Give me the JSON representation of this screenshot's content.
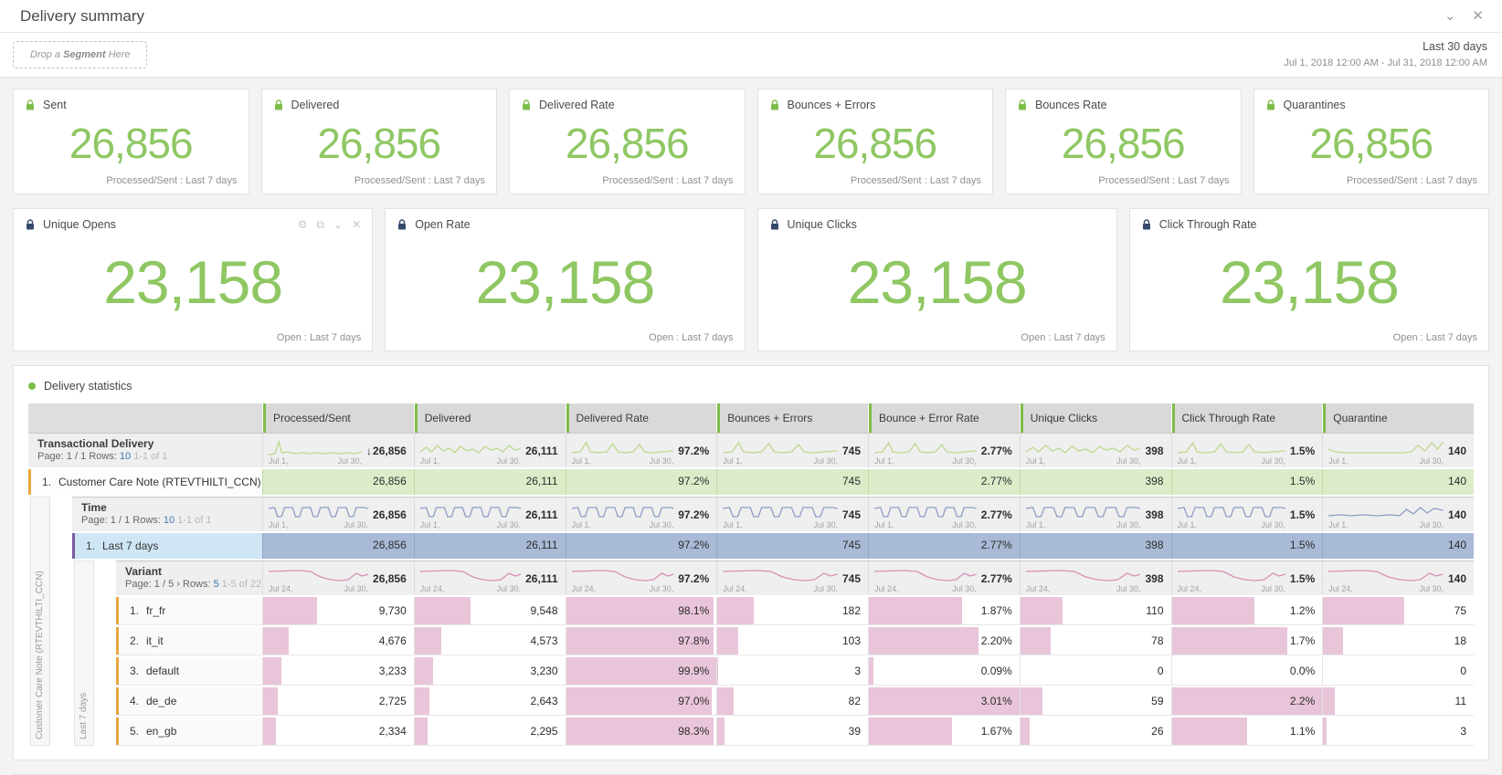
{
  "page": {
    "title": "Delivery summary"
  },
  "icons": {
    "chevron_down": "⌄",
    "close": "✕",
    "gear": "⚙",
    "expand": "⧉"
  },
  "toolbar": {
    "segment_drop_pre": "Drop a ",
    "segment_drop_bold": "Segment",
    "segment_drop_post": " Here",
    "range_label": "Last 30 days",
    "range_dates": "Jul 1, 2018 12:00 AM - Jul 31, 2018 12:00 AM"
  },
  "kpi_row1": [
    {
      "title": "Sent",
      "value": "26,856",
      "caption": "Processed/Sent : Last 7 days"
    },
    {
      "title": "Delivered",
      "value": "26,856",
      "caption": "Processed/Sent : Last 7 days"
    },
    {
      "title": "Delivered Rate",
      "value": "26,856",
      "caption": "Processed/Sent : Last 7 days"
    },
    {
      "title": "Bounces + Errors",
      "value": "26,856",
      "caption": "Processed/Sent : Last 7 days"
    },
    {
      "title": "Bounces Rate",
      "value": "26,856",
      "caption": "Processed/Sent : Last 7 days"
    },
    {
      "title": "Quarantines",
      "value": "26,856",
      "caption": "Processed/Sent : Last 7 days"
    }
  ],
  "kpi_row2": [
    {
      "title": "Unique Opens",
      "value": "23,158",
      "caption": "Open : Last 7 days",
      "tools": [
        "gear",
        "expand",
        "chevron_down",
        "close"
      ]
    },
    {
      "title": "Open Rate",
      "value": "23,158",
      "caption": "Open : Last 7 days"
    },
    {
      "title": "Unique Clicks",
      "value": "23,158",
      "caption": "Open : Last 7 days"
    },
    {
      "title": "Click Through Rate",
      "value": "23,158",
      "caption": "Open : Last 7 days"
    }
  ],
  "stats": {
    "title": "Delivery statistics",
    "columns": [
      "Processed/Sent",
      "Delivered",
      "Delivered Rate",
      "Bounces + Errors",
      "Bounce + Error Rate",
      "Unique Clicks",
      "Click Through Rate",
      "Quarantine"
    ],
    "rails": [
      "Customer Care Note (RTEVTHILTI_CCN)",
      "Last 7 days"
    ],
    "rows": [
      {
        "kind": "group",
        "level": 0,
        "title": "Transactional Delivery",
        "pager": {
          "page": "Page: 1 / 1",
          "next": "",
          "rows_label": "Rows:",
          "rows": "10",
          "range": "1-1 of 1"
        },
        "spark": "green",
        "x0": "Jul 1,",
        "x1": "Jul 30,",
        "sort_col": 0,
        "values": [
          "26,856",
          "26,111",
          "97.2%",
          "745",
          "2.77%",
          "398",
          "1.5%",
          "140"
        ]
      },
      {
        "kind": "row",
        "level": 0,
        "index": "1.",
        "label": "Customer Care Note (RTEVTHILTI_CCN)",
        "theme": "green",
        "values": [
          "26,856",
          "26,111",
          "97.2%",
          "745",
          "2.77%",
          "398",
          "1.5%",
          "140"
        ]
      },
      {
        "kind": "group",
        "level": 1,
        "title": "Time",
        "pager": {
          "page": "Page: 1 / 1",
          "next": "",
          "rows_label": "Rows:",
          "rows": "10",
          "range": "1-1 of 1"
        },
        "spark": "blue",
        "x0": "Jul 1,",
        "x1": "Jul 30,",
        "values": [
          "26,856",
          "26,111",
          "97.2%",
          "745",
          "2.77%",
          "398",
          "1.5%",
          "140"
        ]
      },
      {
        "kind": "row",
        "level": 1,
        "index": "1.",
        "label": "Last 7 days",
        "theme": "blue",
        "values": [
          "26,856",
          "26,111",
          "97.2%",
          "745",
          "2.77%",
          "398",
          "1.5%",
          "140"
        ]
      },
      {
        "kind": "group",
        "level": 2,
        "title": "Variant",
        "pager": {
          "page": "Page: 1 / 5",
          "next": "›",
          "rows_label": "Rows:",
          "rows": "5",
          "range": "1-5 of 22"
        },
        "spark": "pink",
        "x0": "Jul 24,",
        "x1": "Jul 30,",
        "values": [
          "26,856",
          "26,111",
          "97.2%",
          "745",
          "2.77%",
          "398",
          "1.5%",
          "140"
        ]
      },
      {
        "kind": "row",
        "level": 2,
        "index": "1.",
        "label": "fr_fr",
        "theme": "bars",
        "values": [
          "9,730",
          "9,548",
          "98.1%",
          "182",
          "1.87%",
          "110",
          "1.2%",
          "75"
        ],
        "bars": [
          0.36,
          0.37,
          0.98,
          0.24,
          0.62,
          0.28,
          0.55,
          0.54
        ]
      },
      {
        "kind": "row",
        "level": 2,
        "index": "2.",
        "label": "it_it",
        "theme": "bars",
        "values": [
          "4,676",
          "4,573",
          "97.8%",
          "103",
          "2.20%",
          "78",
          "1.7%",
          "18"
        ],
        "bars": [
          0.17,
          0.18,
          0.98,
          0.14,
          0.73,
          0.2,
          0.77,
          0.13
        ]
      },
      {
        "kind": "row",
        "level": 2,
        "index": "3.",
        "label": "default",
        "theme": "bars",
        "values": [
          "3,233",
          "3,230",
          "99.9%",
          "3",
          "0.09%",
          "0",
          "0.0%",
          "0"
        ],
        "bars": [
          0.12,
          0.12,
          1.0,
          0.004,
          0.03,
          0,
          0,
          0
        ]
      },
      {
        "kind": "row",
        "level": 2,
        "index": "4.",
        "label": "de_de",
        "theme": "bars",
        "values": [
          "2,725",
          "2,643",
          "97.0%",
          "82",
          "3.01%",
          "59",
          "2.2%",
          "11"
        ],
        "bars": [
          0.1,
          0.1,
          0.97,
          0.11,
          1.0,
          0.15,
          1.0,
          0.08
        ]
      },
      {
        "kind": "row",
        "level": 2,
        "index": "5.",
        "label": "en_gb",
        "theme": "bars",
        "values": [
          "2,334",
          "2,295",
          "98.3%",
          "39",
          "1.67%",
          "26",
          "1.1%",
          "3"
        ],
        "bars": [
          0.087,
          0.088,
          0.98,
          0.05,
          0.55,
          0.065,
          0.5,
          0.021
        ]
      }
    ]
  },
  "colors": {
    "accent_green": "#7ebd4a",
    "kpi_number": "#8fc763",
    "lock_green": "#7ebd4a",
    "lock_navy": "#35496a",
    "spark_green": "#bcd98f",
    "spark_blue": "#8e9ec3",
    "spark_pink": "#db8fb7",
    "row_green_bg": "#dcecc9",
    "row_blue_bg": "#a8bad6",
    "bar_pink": "#e9c5da",
    "border_orange": "#eaa63c",
    "border_purple": "#7a5ca0"
  }
}
